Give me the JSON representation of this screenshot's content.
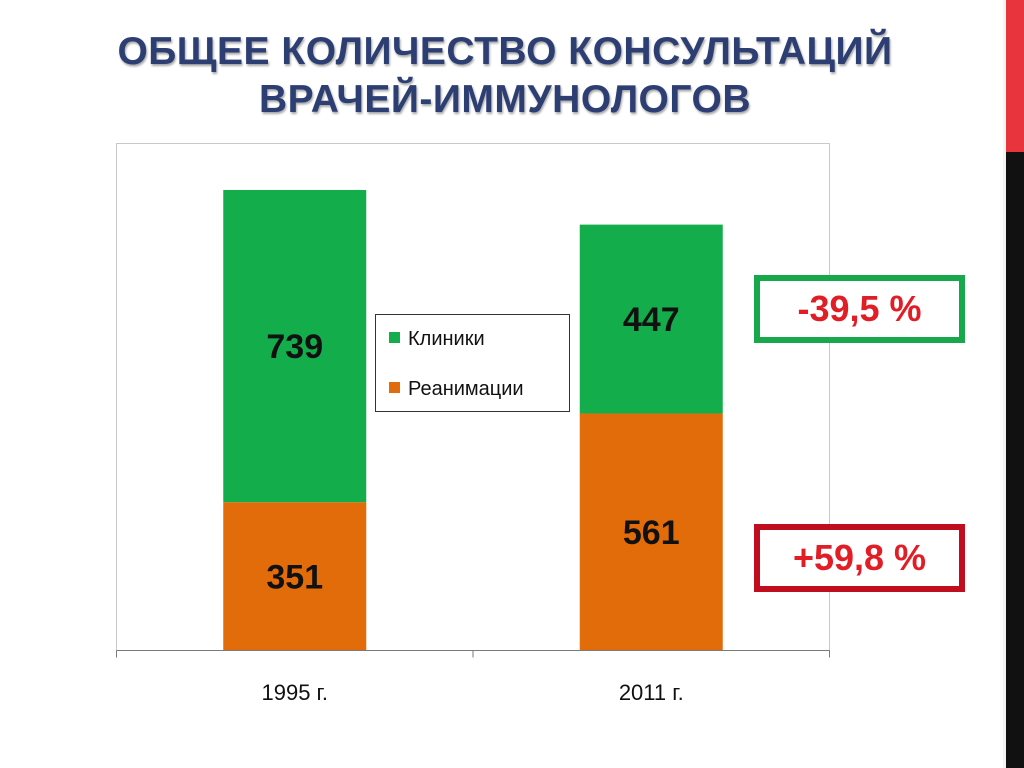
{
  "slide": {
    "title_line1": "ОБЩЕЕ КОЛИЧЕСТВО КОНСУЛЬТАЦИЙ",
    "title_line2": "ВРАЧЕЙ-ИММУНОЛОГОВ"
  },
  "chart_data": {
    "type": "bar",
    "stacked": true,
    "categories": [
      "1995 г.",
      "2011 г."
    ],
    "series": [
      {
        "name": "Реанимации",
        "values": [
          351,
          561
        ],
        "color": "#e36c0a"
      },
      {
        "name": "Клиники",
        "values": [
          739,
          447
        ],
        "color": "#13ad4b"
      }
    ],
    "ylim": [
      0,
      1200
    ],
    "grid": false,
    "legend": "center",
    "title": "",
    "xlabel": "",
    "ylabel": ""
  },
  "annotations": {
    "klinik_change": "-39,5 %",
    "reanim_change": "+59,8 %"
  },
  "colors": {
    "title": "#2d3e73",
    "klinik": "#13ad4b",
    "reanim": "#e36c0a",
    "badge_green_border": "#16a84a",
    "badge_red_border": "#c00e1e",
    "badge_text": "#e11d26"
  }
}
